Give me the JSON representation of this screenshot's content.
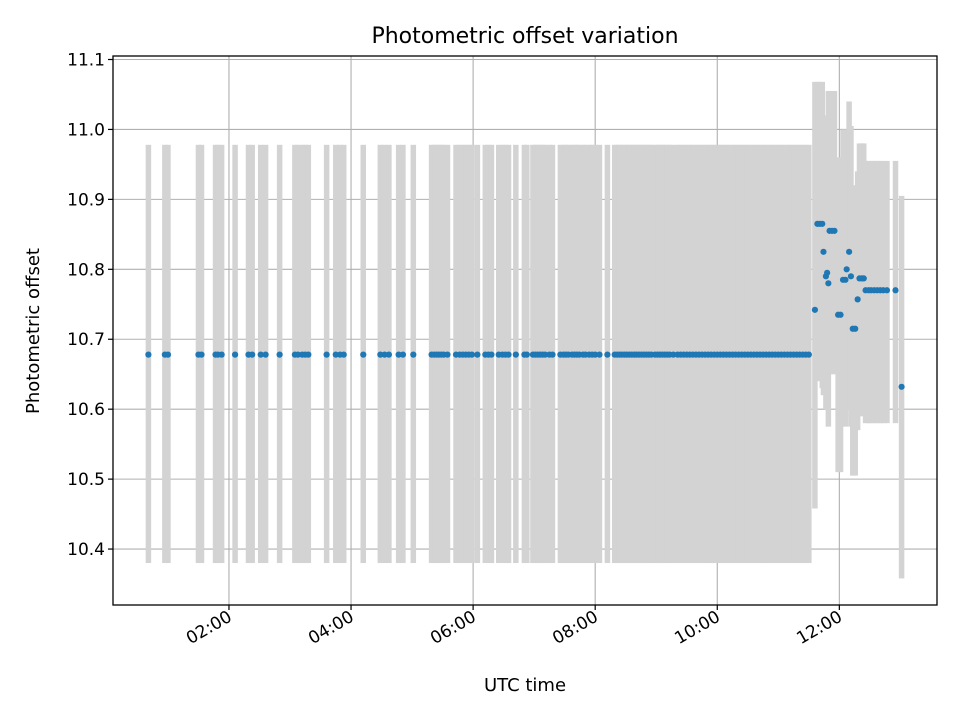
{
  "chart_data": {
    "type": "scatter",
    "title": "Photometric offset variation",
    "xlabel": "UTC time",
    "ylabel": "Photometric offset",
    "xlim": [
      0.1,
      13.6
    ],
    "ylim": [
      10.32,
      11.105
    ],
    "grid": true,
    "colors": {
      "points": "#1f77b4",
      "errorbars": "#d3d3d3",
      "grid": "#b0b0b0"
    },
    "x_ticks": [
      {
        "value": 2,
        "label": "02:00"
      },
      {
        "value": 4,
        "label": "04:00"
      },
      {
        "value": 6,
        "label": "06:00"
      },
      {
        "value": 8,
        "label": "08:00"
      },
      {
        "value": 10,
        "label": "10:00"
      },
      {
        "value": 12,
        "label": "12:00"
      }
    ],
    "y_ticks": [
      {
        "value": 10.4,
        "label": "10.4"
      },
      {
        "value": 10.5,
        "label": "10.5"
      },
      {
        "value": 10.6,
        "label": "10.6"
      },
      {
        "value": 10.7,
        "label": "10.7"
      },
      {
        "value": 10.8,
        "label": "10.8"
      },
      {
        "value": 10.9,
        "label": "10.9"
      },
      {
        "value": 11.0,
        "label": "11.0"
      },
      {
        "value": 11.1,
        "label": "11.1"
      }
    ],
    "constant_segment": {
      "y": 10.678,
      "error_low": 10.38,
      "error_high": 10.978,
      "x": [
        0.68,
        0.95,
        1.0,
        1.5,
        1.55,
        1.78,
        1.82,
        1.88,
        2.1,
        2.32,
        2.38,
        2.52,
        2.6,
        2.83,
        3.08,
        3.13,
        3.2,
        3.25,
        3.3,
        3.6,
        3.75,
        3.82,
        3.88,
        4.2,
        4.48,
        4.55,
        4.62,
        4.78,
        4.85,
        5.02,
        5.32,
        5.36,
        5.4,
        5.44,
        5.48,
        5.52,
        5.58,
        5.72,
        5.78,
        5.83,
        5.88,
        5.93,
        5.98,
        6.07,
        6.2,
        6.25,
        6.3,
        6.42,
        6.48,
        6.53,
        6.58,
        6.7,
        6.84,
        6.88,
        6.98,
        7.02,
        7.06,
        7.1,
        7.14,
        7.18,
        7.25,
        7.3,
        7.43,
        7.48,
        7.52,
        7.56,
        7.62,
        7.66,
        7.7,
        7.74,
        7.8,
        7.84,
        7.9,
        7.95,
        8.0,
        8.07,
        8.2,
        8.32,
        8.36,
        8.4,
        8.44,
        8.48,
        8.52,
        8.56,
        8.6,
        8.64,
        8.68,
        8.72,
        8.76,
        8.8,
        8.84,
        8.88,
        8.92,
        8.98,
        9.02,
        9.06,
        9.1,
        9.14,
        9.18,
        9.22,
        9.28,
        9.35,
        9.4,
        9.45,
        9.5,
        9.55,
        9.6,
        9.65,
        9.7,
        9.75,
        9.8,
        9.85,
        9.9,
        9.95,
        10.0,
        10.05,
        10.1,
        10.15,
        10.2,
        10.25,
        10.3,
        10.35,
        10.4,
        10.45,
        10.5,
        10.55,
        10.6,
        10.65,
        10.7,
        10.75,
        10.8,
        10.85,
        10.9,
        10.95,
        11.0,
        11.05,
        11.1,
        11.15,
        11.2,
        11.25,
        11.3,
        11.35,
        11.4,
        11.45,
        11.5
      ]
    },
    "variable_segment": [
      {
        "x": 11.6,
        "y": 10.742,
        "low": 10.458,
        "high": 11.068
      },
      {
        "x": 11.64,
        "y": 10.865,
        "low": 10.68,
        "high": 11.068
      },
      {
        "x": 11.68,
        "y": 10.865,
        "low": 10.64,
        "high": 11.068
      },
      {
        "x": 11.72,
        "y": 10.865,
        "low": 10.63,
        "high": 11.068
      },
      {
        "x": 11.74,
        "y": 10.825,
        "low": 10.62,
        "high": 11.02
      },
      {
        "x": 11.78,
        "y": 10.79,
        "low": 10.6,
        "high": 11.0
      },
      {
        "x": 11.8,
        "y": 10.795,
        "low": 10.6,
        "high": 11.0
      },
      {
        "x": 11.82,
        "y": 10.78,
        "low": 10.575,
        "high": 11.055
      },
      {
        "x": 11.84,
        "y": 10.855,
        "low": 10.65,
        "high": 11.055
      },
      {
        "x": 11.88,
        "y": 10.855,
        "low": 10.65,
        "high": 11.055
      },
      {
        "x": 11.92,
        "y": 10.855,
        "low": 10.65,
        "high": 11.055
      },
      {
        "x": 11.98,
        "y": 10.735,
        "low": 10.51,
        "high": 10.96
      },
      {
        "x": 12.02,
        "y": 10.735,
        "low": 10.51,
        "high": 10.96
      },
      {
        "x": 12.06,
        "y": 10.785,
        "low": 10.58,
        "high": 11.0
      },
      {
        "x": 12.1,
        "y": 10.785,
        "low": 10.575,
        "high": 11.0
      },
      {
        "x": 12.12,
        "y": 10.8,
        "low": 10.6,
        "high": 11.0
      },
      {
        "x": 12.16,
        "y": 10.825,
        "low": 10.6,
        "high": 11.04
      },
      {
        "x": 12.19,
        "y": 10.79,
        "low": 10.575,
        "high": 11.005
      },
      {
        "x": 12.22,
        "y": 10.715,
        "low": 10.505,
        "high": 10.92
      },
      {
        "x": 12.26,
        "y": 10.715,
        "low": 10.505,
        "high": 10.92
      },
      {
        "x": 12.3,
        "y": 10.757,
        "low": 10.57,
        "high": 10.94
      },
      {
        "x": 12.33,
        "y": 10.787,
        "low": 10.59,
        "high": 10.98
      },
      {
        "x": 12.37,
        "y": 10.787,
        "low": 10.59,
        "high": 10.98
      },
      {
        "x": 12.4,
        "y": 10.787,
        "low": 10.59,
        "high": 10.98
      },
      {
        "x": 12.43,
        "y": 10.77,
        "low": 10.58,
        "high": 10.955
      },
      {
        "x": 12.48,
        "y": 10.77,
        "low": 10.58,
        "high": 10.955
      },
      {
        "x": 12.52,
        "y": 10.77,
        "low": 10.58,
        "high": 10.955
      },
      {
        "x": 12.57,
        "y": 10.77,
        "low": 10.58,
        "high": 10.955
      },
      {
        "x": 12.62,
        "y": 10.77,
        "low": 10.58,
        "high": 10.955
      },
      {
        "x": 12.67,
        "y": 10.77,
        "low": 10.58,
        "high": 10.955
      },
      {
        "x": 12.72,
        "y": 10.77,
        "low": 10.58,
        "high": 10.955
      },
      {
        "x": 12.78,
        "y": 10.77,
        "low": 10.58,
        "high": 10.955
      },
      {
        "x": 12.92,
        "y": 10.77,
        "low": 10.58,
        "high": 10.955
      },
      {
        "x": 13.02,
        "y": 10.632,
        "low": 10.358,
        "high": 10.905
      }
    ]
  }
}
